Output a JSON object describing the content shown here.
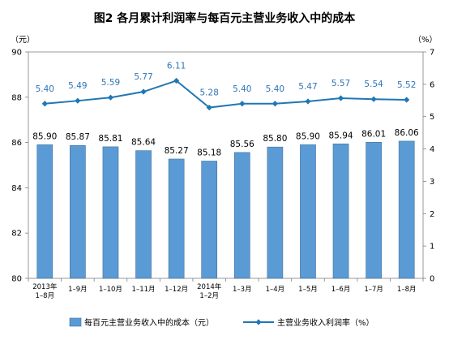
{
  "chart_data": {
    "type": "bar+line",
    "title": "图2  各月累计利润率与每百元主营业务收入中的成本",
    "y_left_unit": "（元）",
    "y_right_unit": "（%）",
    "y_left_range": [
      80,
      90
    ],
    "y_left_ticks": [
      "80",
      "82",
      "84",
      "86",
      "88",
      "90"
    ],
    "y_right_range": [
      0,
      7
    ],
    "y_right_ticks": [
      "0",
      "1",
      "2",
      "3",
      "4",
      "5",
      "6",
      "7"
    ],
    "categories": [
      [
        "2013年",
        "1–8月"
      ],
      [
        "1–9月"
      ],
      [
        "1–10月"
      ],
      [
        "1–11月"
      ],
      [
        "1–12月"
      ],
      [
        "2014年",
        "1–2月"
      ],
      [
        "1–3月"
      ],
      [
        "1–4月"
      ],
      [
        "1–5月"
      ],
      [
        "1–6月"
      ],
      [
        "1–7月"
      ],
      [
        "1–8月"
      ]
    ],
    "series": [
      {
        "name": "每百元主营业务收入中的成本（元）",
        "kind": "bar",
        "axis": "left",
        "color": "#5b9bd5",
        "values": [
          85.9,
          85.87,
          85.81,
          85.64,
          85.27,
          85.18,
          85.56,
          85.8,
          85.9,
          85.94,
          86.01,
          86.06
        ],
        "labels": [
          "85.90",
          "85.87",
          "85.81",
          "85.64",
          "85.27",
          "85.18",
          "85.56",
          "85.80",
          "85.90",
          "85.94",
          "86.01",
          "86.06"
        ]
      },
      {
        "name": "主营业务收入利润率（%）",
        "kind": "line",
        "axis": "right",
        "color": "#1f77b4",
        "label_color": "#2e75b6",
        "values": [
          5.4,
          5.49,
          5.59,
          5.77,
          6.11,
          5.28,
          5.4,
          5.4,
          5.47,
          5.57,
          5.54,
          5.52
        ],
        "labels": [
          "5.40",
          "5.49",
          "5.59",
          "5.77",
          "6.11",
          "5.28",
          "5.40",
          "5.40",
          "5.47",
          "5.57",
          "5.54",
          "5.52"
        ]
      }
    ],
    "grid": false,
    "legend_position": "bottom"
  }
}
